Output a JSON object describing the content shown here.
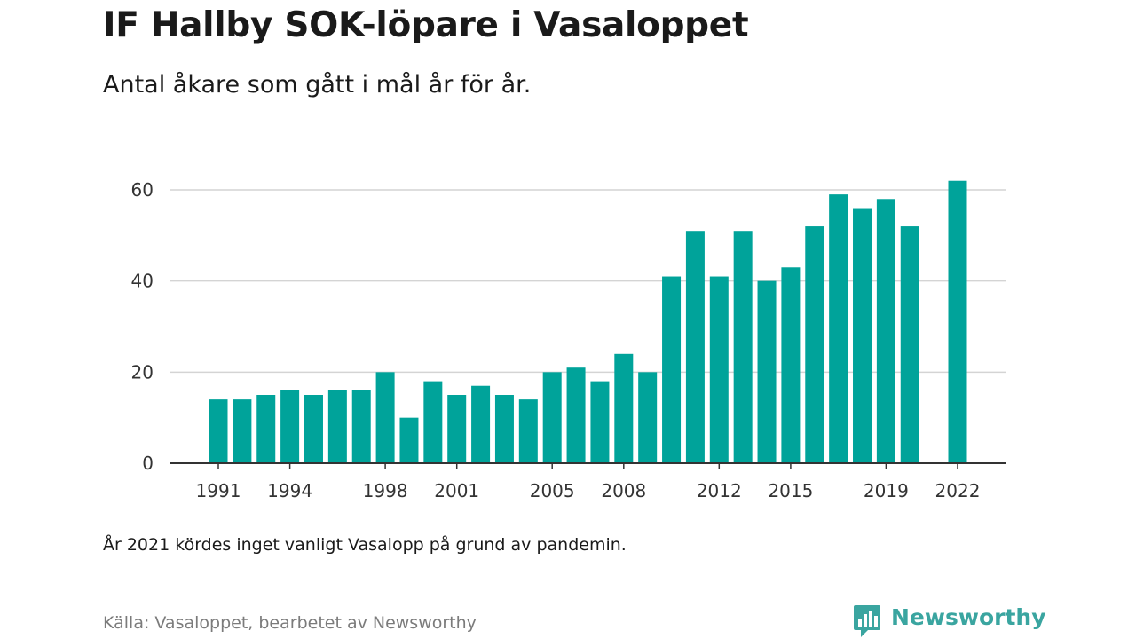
{
  "title": "IF Hallby SOK-löpare i Vasaloppet",
  "subtitle": "Antal åkare som gått i mål år för år.",
  "note": "År 2021 kördes inget vanligt Vasalopp på grund av pandemin.",
  "source": "Källa: Vasaloppet, bearbetet av Newsworthy",
  "brand": {
    "name": "Newsworthy",
    "icon": "newsworthy-logo-icon",
    "color": "#3aa5a0"
  },
  "chart_data": {
    "type": "bar",
    "title": "IF Hallby SOK-löpare i Vasaloppet",
    "subtitle": "Antal åkare som gått i mål år för år.",
    "xlabel": "",
    "ylabel": "",
    "ylim": [
      0,
      65
    ],
    "yticks": [
      0,
      20,
      40,
      60
    ],
    "xticks": [
      1991,
      1994,
      1998,
      2001,
      2005,
      2008,
      2012,
      2015,
      2019,
      2022
    ],
    "grid": true,
    "legend": "none",
    "bar_color": "#00a39a",
    "x": [
      1991,
      1992,
      1993,
      1994,
      1995,
      1996,
      1997,
      1998,
      1999,
      2000,
      2001,
      2002,
      2003,
      2004,
      2005,
      2006,
      2007,
      2008,
      2009,
      2010,
      2011,
      2012,
      2013,
      2014,
      2015,
      2016,
      2017,
      2018,
      2019,
      2020,
      2021,
      2022
    ],
    "values": [
      14,
      14,
      15,
      16,
      15,
      16,
      16,
      20,
      10,
      18,
      15,
      17,
      15,
      14,
      20,
      21,
      18,
      24,
      20,
      41,
      51,
      41,
      51,
      40,
      43,
      52,
      59,
      56,
      58,
      52,
      null,
      62
    ]
  }
}
